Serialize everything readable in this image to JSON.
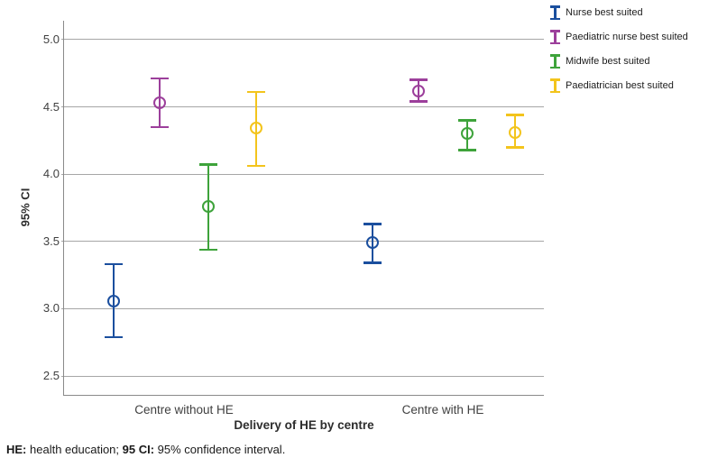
{
  "chart_data": {
    "type": "scatter",
    "subtype": "point-estimate-with-95ci-error-bars",
    "categories": [
      "Centre without HE",
      "Centre with HE"
    ],
    "series": [
      {
        "name": "Nurse best suited",
        "color": "#1b4f9e",
        "means": [
          3.06,
          3.49
        ],
        "ci_low": [
          2.79,
          3.34
        ],
        "ci_high": [
          3.33,
          3.63
        ]
      },
      {
        "name": "Paediatric nurse best suited",
        "color": "#9c3f9b",
        "means": [
          4.53,
          4.62
        ],
        "ci_low": [
          4.35,
          4.54
        ],
        "ci_high": [
          4.71,
          4.7
        ]
      },
      {
        "name": "Midwife best suited",
        "color": "#3ea33b",
        "means": [
          3.76,
          4.3
        ],
        "ci_low": [
          3.44,
          4.18
        ],
        "ci_high": [
          4.07,
          4.4
        ]
      },
      {
        "name": "Paediatrician best suited",
        "color": "#f3c41c",
        "means": [
          4.34,
          4.31
        ],
        "ci_low": [
          4.06,
          4.2
        ],
        "ci_high": [
          4.61,
          4.44
        ]
      }
    ],
    "xlabel": "Delivery of HE by centre",
    "ylabel": "95% CI",
    "yticks": [
      2.5,
      3.0,
      3.5,
      4.0,
      4.5,
      5.0
    ],
    "ylim": [
      2.36,
      5.14
    ],
    "grid": true,
    "legend_position": "top-right-outside"
  },
  "footnote": {
    "parts": [
      {
        "text": "HE:",
        "bold": true
      },
      {
        "text": " health education; ",
        "bold": false
      },
      {
        "text": "95 CI:",
        "bold": true
      },
      {
        "text": " 95% confidence interval.",
        "bold": false
      }
    ]
  },
  "colors": {
    "grid": "#a6a6a6",
    "axis": "#8a8a8a",
    "tick_text": "#404040",
    "background": "#ffffff"
  }
}
